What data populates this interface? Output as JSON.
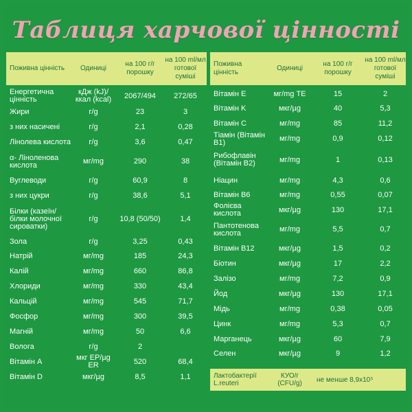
{
  "title": "Таблиця харчової цінності",
  "header": {
    "name": "Поживна цінність",
    "unit": "Одиниці",
    "per100g": "на 100 г/г порошку",
    "per100ml": "на 100 ml/мл готової суміші"
  },
  "left": [
    {
      "name": "Енергетична цінність",
      "unit": "кДж (kJ)/ ккал (kcal)",
      "v1": "2067/494",
      "v2": "272/65",
      "h": 26
    },
    {
      "name": "Жири",
      "unit": "г/g",
      "v1": "23",
      "v2": "3",
      "h": 21
    },
    {
      "name": "з них насичені",
      "unit": "г/g",
      "v1": "2,1",
      "v2": "0,28",
      "h": 22
    },
    {
      "name": "Лінолева кислота",
      "unit": "г/g",
      "v1": "3,6",
      "v2": "0,47",
      "h": 23
    },
    {
      "name": "α- Ліноленова кислота",
      "unit": "мг/mg",
      "v1": "290",
      "v2": "38",
      "h": 33
    },
    {
      "name": "Вуглеводи",
      "unit": "г/g",
      "v1": "60,9",
      "v2": "8",
      "h": 22
    },
    {
      "name": "з них цукри",
      "unit": "г/g",
      "v1": "38,6",
      "v2": "5,1",
      "h": 23
    },
    {
      "name": "Білки (казеїн/білки молочної сироватки)",
      "unit": "г/g",
      "v1": "10,8 (50/50)",
      "v2": "1,4",
      "h": 44
    },
    {
      "name": "Зола",
      "unit": "г/g",
      "v1": "3,25",
      "v2": "0,43",
      "h": 22
    },
    {
      "name": "Натрій",
      "unit": "мг/mg",
      "v1": "185",
      "v2": "24,3",
      "h": 21
    },
    {
      "name": "Калій",
      "unit": "мг/mg",
      "v1": "660",
      "v2": "86,8",
      "h": 22
    },
    {
      "name": "Хлориди",
      "unit": "мг/mg",
      "v1": "330",
      "v2": "43,4",
      "h": 22
    },
    {
      "name": "Кальцій",
      "unit": "мг/mg",
      "v1": "545",
      "v2": "71,7",
      "h": 22
    },
    {
      "name": "Фосфор",
      "unit": "мг/mg",
      "v1": "300",
      "v2": "39,5",
      "h": 22
    },
    {
      "name": "Магній",
      "unit": "мг/mg",
      "v1": "50",
      "v2": "6,6",
      "h": 22
    },
    {
      "name": "Волога",
      "unit": "г/g",
      "v1": "2",
      "v2": "",
      "h": 22
    },
    {
      "name": "Вітамін A",
      "unit": "мкг ЕР/µg ER",
      "v1": "520",
      "v2": "68,4",
      "h": 22
    },
    {
      "name": "Вітамін D",
      "unit": "мкг/µg",
      "v1": "8,5",
      "v2": "1,1",
      "h": 22
    }
  ],
  "right": [
    {
      "name": "Вітамін E",
      "unit": "мг/mg ТЕ",
      "v1": "15",
      "v2": "2",
      "h": 21
    },
    {
      "name": "Вітамін K",
      "unit": "мкг/µg",
      "v1": "40",
      "v2": "5,3",
      "h": 21
    },
    {
      "name": "Вітамін C",
      "unit": "мг/mg",
      "v1": "85",
      "v2": "11,2",
      "h": 22
    },
    {
      "name": "Тіамін (Вітамін B1)",
      "unit": "мг/mg",
      "v1": "0,9",
      "v2": "0,12",
      "h": 23
    },
    {
      "name": "Рибофлавін (Вітамін B2)",
      "unit": "мг/mg",
      "v1": "1",
      "v2": "0,13",
      "h": 38
    },
    {
      "name": "Ніацин",
      "unit": "мг/mg",
      "v1": "4,3",
      "v2": "0,6",
      "h": 22
    },
    {
      "name": "Вітамін B6",
      "unit": "мг/mg",
      "v1": "0,55",
      "v2": "0,07",
      "h": 21
    },
    {
      "name": "Фолієва кислота",
      "unit": "мкг/µg",
      "v1": "130",
      "v2": "17,1",
      "h": 22
    },
    {
      "name": "Пантотенова кислота",
      "unit": "мг/mg",
      "v1": "5,5",
      "v2": "0,7",
      "h": 35
    },
    {
      "name": "Вітамін B12",
      "unit": "мкг/µg",
      "v1": "1,5",
      "v2": "0,2",
      "h": 21
    },
    {
      "name": "Біотин",
      "unit": "мкг/µg",
      "v1": "17",
      "v2": "2,2",
      "h": 22
    },
    {
      "name": "Залізо",
      "unit": "мг/mg",
      "v1": "7,2",
      "v2": "0,9",
      "h": 22
    },
    {
      "name": "Йод",
      "unit": "мкг/µg",
      "v1": "130",
      "v2": "17,1",
      "h": 22
    },
    {
      "name": "Мідь",
      "unit": "мг/mg",
      "v1": "0,38",
      "v2": "0,05",
      "h": 22
    },
    {
      "name": "Цинк",
      "unit": "мг/mg",
      "v1": "5,3",
      "v2": "0,7",
      "h": 22
    },
    {
      "name": "Марганець",
      "unit": "мкг/µg",
      "v1": "60",
      "v2": "7,9",
      "h": 22
    },
    {
      "name": "Селен",
      "unit": "мкг/µg",
      "v1": "9",
      "v2": "1,2",
      "h": 20
    }
  ],
  "footer": {
    "name": "Лактобактерії L.reuteri",
    "unit": "КУО/г (CFU/g)",
    "value": "не менше 8,9x10⁵"
  }
}
